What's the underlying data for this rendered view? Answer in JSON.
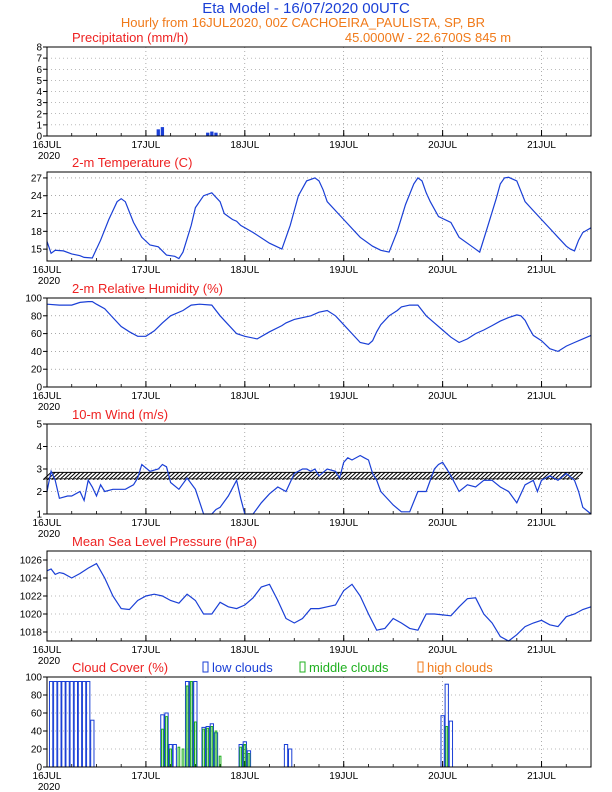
{
  "header": {
    "title": "Eta Model - 16/07/2020 00UTC",
    "line1": "Hourly from 16JUL2020, 00Z  CACHOEIRA_PAULISTA, SP, BR",
    "line2": "45.0000W - 22.6700S     845  m"
  },
  "colors": {
    "title": "#1a3fd6",
    "subtitle": "#f07a1a",
    "panel_title": "#ee2222",
    "series": "#1a3fd6",
    "low": "#1a3fd6",
    "middle": "#1fb01f",
    "high": "#f07a1a"
  },
  "chart_data": [
    {
      "id": "precip",
      "type": "bar",
      "title": "Precipitation (mm/h)",
      "xlim": [
        0,
        132
      ],
      "ylim": [
        0,
        8
      ],
      "yticks": [
        0,
        1,
        2,
        3,
        4,
        5,
        6,
        7,
        8
      ],
      "xticks": [
        {
          "h": 0,
          "label": "16JUL",
          "year": "2020"
        },
        {
          "h": 24,
          "label": "17JUL"
        },
        {
          "h": 48,
          "label": "18JUL"
        },
        {
          "h": 72,
          "label": "19JUL"
        },
        {
          "h": 96,
          "label": "20JUL"
        },
        {
          "h": 120,
          "label": "21JUL"
        }
      ],
      "x": [
        27,
        28,
        39,
        40,
        41
      ],
      "values": [
        0.6,
        0.8,
        0.3,
        0.4,
        0.3
      ]
    },
    {
      "id": "temp",
      "type": "line",
      "title": "2-m Temperature (C)",
      "xlim": [
        0,
        132
      ],
      "ylim": [
        13,
        28
      ],
      "yticks": [
        15,
        18,
        21,
        24,
        27
      ],
      "xticks": [
        {
          "h": 0,
          "label": "16JUL",
          "year": "2020"
        },
        {
          "h": 24,
          "label": "17JUL"
        },
        {
          "h": 48,
          "label": "18JUL"
        },
        {
          "h": 72,
          "label": "19JUL"
        },
        {
          "h": 96,
          "label": "20JUL"
        },
        {
          "h": 120,
          "label": "21JUL"
        }
      ],
      "x": [
        0,
        1,
        2,
        4,
        6,
        8,
        9,
        11,
        13,
        15,
        17,
        18,
        19,
        21,
        23,
        25,
        27,
        29,
        31,
        32,
        33,
        35,
        36,
        38,
        40,
        42,
        43,
        44,
        45,
        46,
        47,
        50,
        54,
        57,
        59,
        61,
        63,
        65,
        66,
        67,
        68,
        72,
        76,
        79,
        81,
        83,
        85,
        87,
        89,
        90,
        91,
        92,
        93,
        95,
        98,
        100,
        103,
        105,
        107,
        109,
        110,
        111,
        112,
        114,
        116,
        118,
        120,
        122,
        124,
        126,
        127,
        128,
        129,
        130,
        132
      ],
      "values": [
        16.3,
        14.3,
        14.8,
        14.7,
        14.2,
        13.9,
        13.6,
        13.5,
        16.5,
        20.0,
        23.0,
        23.5,
        23.0,
        19.5,
        17.0,
        15.7,
        15.4,
        14.0,
        13.8,
        13.4,
        14.5,
        19.0,
        22.0,
        24.0,
        24.5,
        23.0,
        21.0,
        20.5,
        20.0,
        19.7,
        19.0,
        17.8,
        16.0,
        15.0,
        19.0,
        24.0,
        26.5,
        27.0,
        26.5,
        25.0,
        23.0,
        20.0,
        17.0,
        15.5,
        14.8,
        14.5,
        18.0,
        22.5,
        26.0,
        27.0,
        26.5,
        24.5,
        23.0,
        20.5,
        19.5,
        17.0,
        15.5,
        14.5,
        19.0,
        23.5,
        26.0,
        27.0,
        27.1,
        26.5,
        23.0,
        21.5,
        20.0,
        18.5,
        17.0,
        15.5,
        15.0,
        14.7,
        16.5,
        17.8,
        18.6
      ]
    },
    {
      "id": "rh",
      "type": "line",
      "title": "2-m Relative Humidity (%)",
      "xlim": [
        0,
        132
      ],
      "ylim": [
        0,
        100
      ],
      "yticks": [
        0,
        20,
        40,
        60,
        80,
        100
      ],
      "xticks": [
        {
          "h": 0,
          "label": "16JUL",
          "year": "2020"
        },
        {
          "h": 24,
          "label": "17JUL"
        },
        {
          "h": 48,
          "label": "18JUL"
        },
        {
          "h": 72,
          "label": "19JUL"
        },
        {
          "h": 96,
          "label": "20JUL"
        },
        {
          "h": 120,
          "label": "21JUL"
        }
      ],
      "x": [
        0,
        3,
        6,
        8,
        10,
        11,
        12,
        14,
        16,
        18,
        20,
        22,
        24,
        26,
        28,
        30,
        33,
        34,
        35,
        37,
        40,
        42,
        44,
        46,
        48,
        51,
        54,
        57,
        58,
        60,
        64,
        66,
        68,
        70,
        72,
        74,
        76,
        78,
        79,
        80,
        81,
        83,
        85,
        86,
        88,
        90,
        92,
        94,
        96,
        98,
        100,
        102,
        104,
        106,
        108,
        110,
        112,
        114,
        115,
        116,
        117,
        118,
        120,
        122,
        124,
        126,
        128,
        130,
        132
      ],
      "values": [
        93,
        92,
        92,
        95,
        96,
        96,
        93,
        88,
        78,
        68,
        62,
        57,
        57,
        63,
        72,
        80,
        86,
        89,
        92,
        93,
        92,
        80,
        70,
        60,
        57,
        54,
        62,
        69,
        72,
        76,
        80,
        84,
        86,
        80,
        70,
        60,
        50,
        48,
        52,
        62,
        70,
        80,
        86,
        90,
        92,
        92,
        80,
        72,
        64,
        56,
        50,
        54,
        60,
        64,
        69,
        74,
        78,
        81,
        80,
        75,
        66,
        58,
        52,
        43,
        40,
        46,
        50,
        54,
        58
      ]
    },
    {
      "id": "wind",
      "type": "line",
      "title": "10-m Wind (m/s)",
      "xlim": [
        0,
        132
      ],
      "ylim": [
        1,
        5
      ],
      "yticks": [
        1,
        2,
        3,
        4,
        5
      ],
      "xticks": [
        {
          "h": 0,
          "label": "16JUL",
          "year": "2020"
        },
        {
          "h": 24,
          "label": "17JUL"
        },
        {
          "h": 48,
          "label": "18JUL"
        },
        {
          "h": 72,
          "label": "19JUL"
        },
        {
          "h": 96,
          "label": "20JUL"
        },
        {
          "h": 120,
          "label": "21JUL"
        }
      ],
      "x": [
        0,
        1,
        2,
        3,
        5,
        6,
        8,
        9,
        10,
        11,
        12,
        13,
        14,
        16,
        19,
        21,
        22,
        23,
        25,
        27,
        28,
        29,
        30,
        32,
        34,
        36,
        38,
        39,
        40,
        41,
        42,
        44,
        46,
        47,
        48,
        50,
        52,
        54,
        56,
        58,
        60,
        62,
        63,
        64,
        65,
        66,
        68,
        70,
        71,
        72,
        73,
        74,
        76,
        77,
        78,
        79,
        80,
        81,
        82,
        83,
        84,
        86,
        88,
        90,
        92,
        94,
        95,
        96,
        97,
        98,
        100,
        102,
        104,
        106,
        108,
        110,
        112,
        114,
        116,
        118,
        119,
        120,
        121,
        122,
        124,
        126,
        128,
        129,
        130,
        132
      ],
      "values": [
        2.0,
        2.9,
        2.5,
        1.7,
        1.8,
        1.8,
        2.0,
        1.6,
        2.5,
        2.2,
        1.8,
        2.3,
        2.0,
        2.1,
        2.1,
        2.3,
        2.6,
        3.2,
        2.9,
        3.0,
        3.2,
        3.1,
        2.4,
        2.1,
        2.6,
        2.1,
        1.0,
        1.0,
        1.0,
        1.2,
        1.3,
        1.8,
        2.5,
        1.7,
        1.0,
        1.0,
        1.5,
        1.9,
        2.2,
        2.0,
        2.8,
        3.0,
        3.0,
        2.9,
        3.0,
        2.7,
        3.0,
        2.9,
        2.6,
        3.3,
        3.5,
        3.4,
        3.6,
        3.5,
        3.4,
        2.8,
        2.5,
        2.0,
        1.8,
        1.6,
        1.4,
        1.1,
        1.1,
        2.0,
        2.0,
        3.0,
        3.2,
        3.3,
        3.0,
        2.7,
        2.0,
        2.3,
        2.2,
        2.5,
        2.5,
        2.2,
        2.0,
        1.5,
        2.3,
        2.5,
        2.0,
        2.5,
        2.6,
        2.7,
        2.5,
        2.8,
        2.5,
        2.0,
        1.3,
        1.0
      ],
      "barbs": true
    },
    {
      "id": "mslp",
      "type": "line",
      "title": "Mean Sea Level Pressure (hPa)",
      "xlim": [
        0,
        132
      ],
      "ylim": [
        1017,
        1027
      ],
      "yticks": [
        1018,
        1020,
        1022,
        1024,
        1026
      ],
      "xticks": [
        {
          "h": 0,
          "label": "16JUL",
          "year": "2020"
        },
        {
          "h": 24,
          "label": "17JUL"
        },
        {
          "h": 48,
          "label": "18JUL"
        },
        {
          "h": 72,
          "label": "19JUL"
        },
        {
          "h": 96,
          "label": "20JUL"
        },
        {
          "h": 120,
          "label": "21JUL"
        }
      ],
      "x": [
        0,
        1,
        2,
        3,
        4,
        6,
        8,
        10,
        12,
        14,
        16,
        18,
        20,
        22,
        24,
        26,
        28,
        30,
        32,
        34,
        36,
        38,
        40,
        42,
        44,
        46,
        48,
        50,
        52,
        54,
        56,
        58,
        60,
        62,
        64,
        66,
        68,
        70,
        72,
        74,
        76,
        78,
        80,
        82,
        84,
        86,
        88,
        90,
        92,
        94,
        96,
        98,
        100,
        102,
        104,
        106,
        108,
        110,
        112,
        114,
        116,
        118,
        120,
        122,
        124,
        126,
        128,
        130,
        132
      ],
      "values": [
        1024.8,
        1025.0,
        1024.4,
        1024.6,
        1024.5,
        1024.0,
        1024.5,
        1025.1,
        1025.6,
        1024.0,
        1022.0,
        1020.6,
        1020.5,
        1021.5,
        1022.0,
        1022.2,
        1022.0,
        1021.5,
        1021.2,
        1022.2,
        1021.5,
        1020.0,
        1020.0,
        1021.3,
        1020.8,
        1020.6,
        1021.0,
        1021.8,
        1023.0,
        1023.3,
        1021.5,
        1019.5,
        1019.0,
        1019.5,
        1020.6,
        1020.6,
        1020.8,
        1021.0,
        1022.6,
        1023.3,
        1022.0,
        1020.0,
        1018.2,
        1018.4,
        1019.5,
        1019.0,
        1018.4,
        1018.2,
        1020.0,
        1020.0,
        1019.9,
        1019.8,
        1020.8,
        1021.7,
        1021.8,
        1020.0,
        1019.0,
        1017.5,
        1017.0,
        1017.7,
        1018.6,
        1019.0,
        1019.3,
        1018.8,
        1018.6,
        1019.7,
        1020.0,
        1020.5,
        1020.8
      ]
    },
    {
      "id": "cloud",
      "type": "bar",
      "title": "Cloud Cover (%)",
      "xlim": [
        0,
        132
      ],
      "ylim": [
        0,
        100
      ],
      "yticks": [
        0,
        20,
        40,
        60,
        80,
        100
      ],
      "xticks": [
        {
          "h": 0,
          "label": "16JUL",
          "year": "2020"
        },
        {
          "h": 24,
          "label": "17JUL"
        },
        {
          "h": 48,
          "label": "18JUL"
        },
        {
          "h": 72,
          "label": "19JUL"
        },
        {
          "h": 96,
          "label": "20JUL"
        },
        {
          "h": 120,
          "label": "21JUL"
        }
      ],
      "legend": [
        {
          "label": "low clouds",
          "color": "#1a3fd6"
        },
        {
          "label": "middle clouds",
          "color": "#1fb01f"
        },
        {
          "label": "high clouds",
          "color": "#f07a1a"
        }
      ],
      "series": [
        {
          "name": "low clouds",
          "x": [
            1,
            2,
            3,
            4,
            5,
            6,
            7,
            8,
            9,
            10,
            11,
            28,
            29,
            30,
            31,
            34,
            35,
            36,
            38,
            39,
            40,
            41,
            47,
            48,
            49,
            58,
            59,
            96,
            97,
            98
          ],
          "values": [
            95,
            95,
            95,
            95,
            95,
            95,
            95,
            95,
            95,
            95,
            52,
            58,
            60,
            25,
            25,
            95,
            95,
            95,
            44,
            45,
            48,
            38,
            25,
            28,
            18,
            25,
            20,
            57,
            92,
            51
          ]
        },
        {
          "name": "middle clouds",
          "x": [
            28,
            29,
            30,
            32,
            33,
            34,
            35,
            36,
            38,
            39,
            40,
            41,
            42,
            47,
            48,
            49,
            97
          ],
          "values": [
            42,
            56,
            20,
            22,
            20,
            90,
            95,
            50,
            42,
            43,
            45,
            40,
            12,
            22,
            25,
            15,
            45
          ]
        },
        {
          "name": "high clouds",
          "x": [],
          "values": []
        }
      ]
    }
  ]
}
